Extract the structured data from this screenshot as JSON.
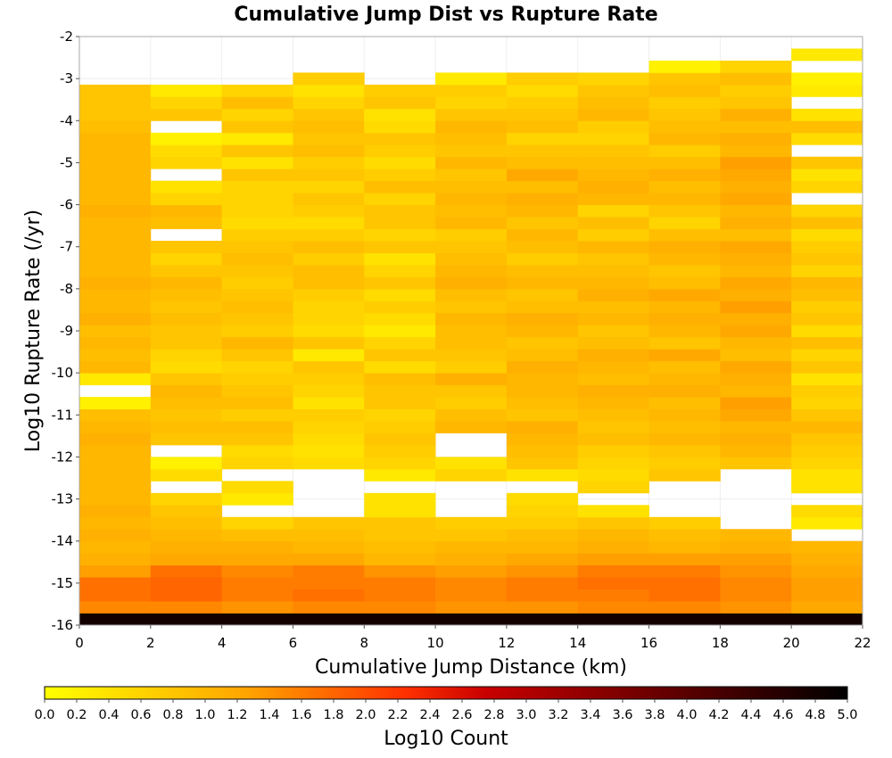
{
  "chart_data": {
    "type": "heatmap",
    "title": "Cumulative Jump Dist vs Rupture Rate",
    "xlabel": "Cumulative Jump Distance (km)",
    "ylabel": "Log10 Rupture Rate (/yr)",
    "colorbar_label": "Log10 Count",
    "xlim": [
      0,
      22
    ],
    "ylim": [
      -16,
      -2
    ],
    "color_range": [
      0,
      5
    ],
    "colormap": [
      "#ffff00",
      "#ffa500",
      "#ff3000",
      "#c80000",
      "#000000"
    ],
    "grid": true,
    "x_ticks": [
      "0",
      "2",
      "4",
      "6",
      "8",
      "10",
      "12",
      "14",
      "16",
      "18",
      "20",
      "22"
    ],
    "y_ticks": [
      "-2",
      "-3",
      "-4",
      "-5",
      "-6",
      "-7",
      "-8",
      "-9",
      "-10",
      "-11",
      "-12",
      "-13",
      "-14",
      "-15",
      "-16"
    ],
    "colorbar_ticks": [
      "0.0",
      "0.2",
      "0.4",
      "0.6",
      "0.8",
      "1.0",
      "1.2",
      "1.4",
      "1.6",
      "1.8",
      "2.0",
      "2.2",
      "2.4",
      "2.6",
      "2.8",
      "3.0",
      "3.2",
      "3.4",
      "3.6",
      "3.8",
      "4.0",
      "4.2",
      "4.4",
      "4.6",
      "4.8",
      "5.0"
    ],
    "x_bin_edges": [
      0,
      2,
      4,
      6,
      8,
      10,
      12,
      14,
      16,
      18,
      20,
      22
    ],
    "y_bin_width": 0.2857,
    "y_bin_lowest_center": -15.857,
    "values_note_rows": "each row = x-bin 0-2 ... 20-22; values are Log10 Count listed from rupture rate -16 upward; null = empty bin",
    "values": [
      [
        4.8,
        1.5,
        1.7,
        1.7,
        1.3,
        1.1,
        1.0,
        1.1,
        1.0,
        1.1,
        1.0,
        1.0,
        1.0,
        1.0,
        1.0,
        1.1,
        1.0,
        0.9,
        0.2,
        null,
        0.3,
        1.0,
        0.9,
        1.0,
        0.9,
        1.1,
        1.0,
        1.0,
        1.1,
        1.0,
        1.0,
        1.0,
        1.0,
        1.0,
        1.1,
        1.0,
        1.0,
        1.0,
        1.0,
        1.0,
        1.0,
        0.9,
        0.8,
        0.8,
        0.8,
        null,
        null,
        null,
        null
      ],
      [
        4.8,
        1.5,
        1.8,
        1.8,
        1.7,
        1.2,
        1.1,
        1.0,
        0.9,
        0.8,
        0.6,
        null,
        0.5,
        0.2,
        null,
        0.8,
        0.9,
        0.8,
        0.9,
        1.0,
        0.8,
        0.5,
        0.6,
        0.8,
        0.8,
        0.9,
        0.8,
        0.9,
        1.0,
        0.8,
        0.6,
        0.8,
        null,
        0.9,
        1.0,
        0.6,
        0.4,
        null,
        0.6,
        0.5,
        0.2,
        null,
        0.8,
        0.6,
        0.3,
        null,
        null,
        null,
        null
      ],
      [
        4.8,
        1.4,
        1.6,
        1.6,
        1.5,
        1.2,
        1.1,
        0.9,
        0.6,
        null,
        0.3,
        0.5,
        null,
        0.6,
        0.5,
        0.8,
        0.9,
        0.7,
        0.9,
        0.8,
        0.7,
        0.6,
        0.8,
        1.0,
        0.7,
        0.8,
        0.9,
        0.8,
        0.7,
        0.8,
        0.9,
        0.8,
        0.7,
        0.5,
        0.6,
        0.6,
        0.6,
        0.8,
        0.4,
        0.8,
        0.3,
        0.8,
        0.6,
        0.9,
        0.6,
        null,
        null,
        null,
        null
      ],
      [
        4.8,
        1.5,
        1.7,
        1.6,
        1.6,
        1.2,
        1.0,
        0.9,
        0.8,
        null,
        null,
        null,
        null,
        0.5,
        0.4,
        0.5,
        0.6,
        0.7,
        0.4,
        0.6,
        0.7,
        0.8,
        0.3,
        0.8,
        0.5,
        0.6,
        0.6,
        0.7,
        0.9,
        0.9,
        0.7,
        0.9,
        0.7,
        0.5,
        0.7,
        0.8,
        0.6,
        0.8,
        0.7,
        0.9,
        0.8,
        0.9,
        0.8,
        0.6,
        0.4,
        0.7,
        null,
        null,
        null
      ],
      [
        4.8,
        1.5,
        1.6,
        1.6,
        1.4,
        1.0,
        0.9,
        0.8,
        0.8,
        0.4,
        0.4,
        null,
        0.3,
        0.6,
        0.7,
        0.8,
        0.7,
        0.6,
        0.8,
        0.8,
        0.9,
        0.5,
        0.8,
        0.6,
        0.3,
        0.5,
        0.7,
        0.5,
        0.8,
        0.6,
        0.4,
        0.8,
        0.6,
        0.8,
        0.8,
        0.6,
        0.9,
        0.7,
        0.5,
        0.7,
        0.8,
        0.5,
        0.4,
        0.8,
        0.7,
        null,
        null,
        null,
        null
      ],
      [
        4.8,
        1.4,
        1.5,
        1.5,
        1.3,
        1.1,
        1.0,
        0.8,
        0.7,
        null,
        null,
        null,
        0.6,
        0.4,
        null,
        null,
        1.0,
        0.9,
        0.7,
        0.8,
        1.1,
        0.7,
        0.8,
        0.9,
        0.9,
        1.0,
        0.8,
        0.9,
        1.1,
        1.0,
        0.9,
        0.8,
        0.7,
        1.0,
        0.9,
        1.0,
        0.9,
        0.8,
        1.0,
        0.8,
        0.9,
        1.0,
        0.8,
        0.6,
        0.7,
        0.3,
        null,
        null,
        null
      ],
      [
        4.8,
        1.4,
        1.6,
        1.6,
        1.4,
        1.2,
        1.0,
        0.9,
        0.7,
        0.6,
        0.5,
        null,
        0.4,
        0.8,
        0.9,
        1.0,
        1.1,
        0.8,
        0.9,
        1.0,
        1.0,
        1.1,
        0.9,
        0.8,
        1.0,
        1.1,
        0.9,
        0.8,
        1.0,
        0.9,
        0.7,
        0.9,
        1.0,
        0.8,
        1.0,
        1.1,
        0.9,
        1.2,
        0.9,
        0.8,
        0.6,
        0.9,
        0.8,
        0.7,
        0.5,
        0.7,
        null,
        null,
        null
      ],
      [
        4.8,
        1.5,
        1.6,
        1.7,
        1.6,
        1.3,
        1.1,
        1.0,
        0.8,
        0.4,
        null,
        0.6,
        0.5,
        0.6,
        0.7,
        0.9,
        0.8,
        0.9,
        1.0,
        1.1,
        0.9,
        1.0,
        1.1,
        0.9,
        0.8,
        1.0,
        0.9,
        1.1,
        1.0,
        0.9,
        0.8,
        1.0,
        0.7,
        0.9,
        0.6,
        1.0,
        1.1,
        1.0,
        0.9,
        0.8,
        0.6,
        0.7,
        1.0,
        0.9,
        0.8,
        0.6,
        null,
        null,
        null
      ],
      [
        4.8,
        1.5,
        1.7,
        1.7,
        1.6,
        1.3,
        1.0,
        0.9,
        0.7,
        null,
        null,
        null,
        0.8,
        0.7,
        0.8,
        1.0,
        0.9,
        1.0,
        0.9,
        1.1,
        1.0,
        0.9,
        1.2,
        0.8,
        1.0,
        1.1,
        1.0,
        1.2,
        0.9,
        0.8,
        1.0,
        1.1,
        0.9,
        0.6,
        0.8,
        1.0,
        0.9,
        1.1,
        0.9,
        0.7,
        1.0,
        0.9,
        0.8,
        0.7,
        0.9,
        0.8,
        0.2,
        null,
        null
      ],
      [
        4.8,
        1.4,
        1.5,
        1.5,
        1.4,
        1.3,
        1.1,
        1.0,
        null,
        null,
        null,
        null,
        null,
        0.8,
        1.0,
        1.1,
        1.0,
        1.2,
        1.3,
        1.0,
        1.1,
        1.2,
        0.9,
        1.0,
        1.2,
        1.1,
        1.3,
        1.1,
        1.2,
        1.0,
        1.1,
        1.2,
        0.9,
        1.1,
        1.0,
        1.2,
        1.1,
        1.2,
        1.3,
        1.0,
        1.1,
        0.9,
        1.1,
        0.8,
        0.7,
        0.9,
        0.6,
        null,
        null
      ],
      [
        4.8,
        1.2,
        1.3,
        1.3,
        1.2,
        1.1,
        1.0,
        null,
        0.3,
        0.5,
        null,
        0.4,
        0.4,
        0.6,
        0.7,
        0.8,
        1.0,
        0.8,
        0.6,
        0.7,
        0.4,
        0.8,
        0.6,
        0.9,
        0.5,
        0.8,
        0.7,
        0.9,
        1.0,
        0.6,
        0.8,
        0.7,
        0.5,
        0.9,
        0.6,
        null,
        0.6,
        0.4,
        0.8,
        null,
        0.5,
        0.9,
        0.4,
        null,
        0.3,
        0.2,
        null,
        0.3,
        null
      ]
    ]
  }
}
